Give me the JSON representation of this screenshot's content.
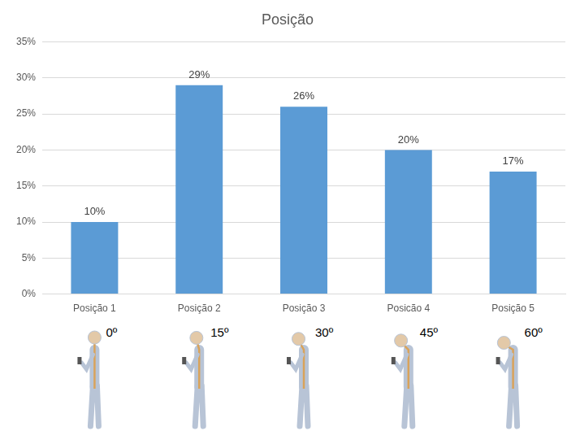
{
  "chart_data": {
    "type": "bar",
    "title": "Posição",
    "categories": [
      "Posição 1",
      "Posição 2",
      "Posição 3",
      "Posicão 4",
      "Posição 5"
    ],
    "values": [
      10,
      29,
      26,
      20,
      17
    ],
    "value_labels": [
      "10%",
      "29%",
      "26%",
      "20%",
      "17%"
    ],
    "data_labels": true,
    "color": "#5b9bd5",
    "ylim": [
      0,
      35
    ],
    "yticks": [
      {
        "value": 0,
        "label": "0%"
      },
      {
        "value": 5,
        "label": "5%"
      },
      {
        "value": 10,
        "label": "10%"
      },
      {
        "value": 15,
        "label": "15%"
      },
      {
        "value": 20,
        "label": "20%"
      },
      {
        "value": 25,
        "label": "25%"
      },
      {
        "value": 30,
        "label": "30%"
      },
      {
        "value": 35,
        "label": "35%"
      }
    ],
    "grid": true,
    "annotations": [
      "0º",
      "15º",
      "30º",
      "45º",
      "60º"
    ]
  }
}
